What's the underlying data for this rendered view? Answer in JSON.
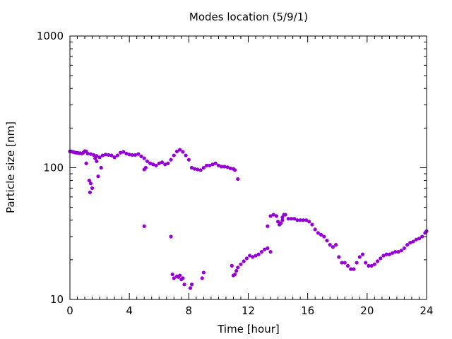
{
  "chart_data": {
    "type": "scatter",
    "title": "Modes location (5/9/1)",
    "xlabel": "Time [hour]",
    "ylabel": "Particle size [nm]",
    "xlim": [
      0,
      24
    ],
    "ylim": [
      10,
      1000
    ],
    "yscale": "log",
    "xticks": [
      0,
      4,
      8,
      12,
      16,
      20,
      24
    ],
    "xtick_labels": [
      "0",
      "4",
      "8",
      "12",
      "16",
      "20",
      "24"
    ],
    "yticks": [
      10,
      100,
      1000
    ],
    "ytick_labels": [
      "10",
      "100",
      "1000"
    ],
    "grid": false,
    "legend": "none",
    "marker_color": "#9400d3",
    "series": [
      {
        "x": [
          0.0,
          0.1,
          0.2,
          0.3,
          0.4,
          0.5,
          0.6,
          0.7,
          0.8,
          0.9,
          1.0,
          1.1,
          1.2,
          1.4,
          1.6,
          1.8,
          2.0,
          2.2,
          2.4,
          2.6,
          2.8,
          3.0,
          3.2,
          3.4,
          3.6,
          3.8,
          4.0,
          4.2,
          4.4,
          4.6,
          4.8,
          5.0,
          5.2,
          5.4,
          5.6,
          5.8,
          6.0,
          6.2,
          6.4,
          6.6,
          6.8,
          7.0,
          7.2,
          7.4,
          7.6,
          7.8,
          8.0,
          8.2,
          8.4,
          8.6,
          8.8,
          9.0,
          9.2,
          9.4,
          9.6,
          9.8,
          10.0,
          10.2,
          10.4,
          10.6,
          10.8,
          11.0,
          11.1
        ],
        "y": [
          133,
          133,
          132,
          131,
          130,
          130,
          129,
          129,
          128,
          130,
          134,
          133,
          128,
          127,
          125,
          123,
          120,
          124,
          126,
          125,
          124,
          120,
          124,
          130,
          132,
          128,
          126,
          125,
          125,
          127,
          122,
          118,
          112,
          108,
          106,
          104,
          108,
          110,
          106,
          108,
          115,
          124,
          133,
          137,
          132,
          124,
          115,
          100,
          98,
          97,
          96,
          100,
          104,
          104,
          106,
          108,
          104,
          102,
          102,
          101,
          99,
          98,
          96
        ]
      },
      {
        "x": [
          1.1,
          1.3,
          1.4,
          1.35,
          1.5,
          1.7,
          1.8,
          1.9,
          2.1,
          5.0,
          5.1,
          11.3
        ],
        "y": [
          108,
          80,
          76,
          65,
          70,
          118,
          112,
          86,
          100,
          97,
          100,
          82
        ]
      },
      {
        "x": [
          5.0,
          6.8
        ],
        "y": [
          36,
          30
        ]
      },
      {
        "x": [
          6.9,
          7.0,
          7.2,
          7.3,
          7.4,
          7.5,
          7.6,
          7.7,
          8.1,
          8.2,
          8.9,
          9.0,
          10.9,
          11.0,
          11.1,
          11.2,
          11.3,
          11.5,
          11.7,
          11.9,
          12.1,
          12.3,
          12.5,
          12.7,
          12.9,
          13.1,
          13.3,
          13.5
        ],
        "y": [
          15.5,
          14.5,
          15.0,
          14.8,
          15.2,
          14.2,
          14.5,
          13.0,
          12.2,
          13.0,
          14.5,
          16.0,
          18.0,
          15.2,
          15.5,
          16.5,
          17.5,
          18.5,
          19.5,
          20.5,
          21.5,
          21.0,
          21.5,
          22.0,
          23.0,
          24.0,
          24.5,
          23.0
        ]
      },
      {
        "x": [
          13.3,
          13.5,
          13.7,
          13.9,
          14.1,
          14.3,
          14.5,
          14.7,
          14.9,
          15.1,
          15.3,
          15.5,
          15.7,
          15.9,
          16.1,
          16.3,
          16.5,
          16.7,
          16.9,
          17.1,
          17.3,
          17.5,
          17.7,
          17.9,
          18.1,
          18.3,
          18.5,
          18.7,
          18.9,
          19.1,
          19.3,
          19.5,
          19.7,
          19.9,
          20.1,
          20.3,
          20.5,
          20.7,
          20.9,
          21.1,
          21.3,
          21.5,
          21.7,
          21.9,
          22.1,
          22.3,
          22.5,
          22.7,
          22.9,
          23.1,
          23.3,
          23.5,
          23.7,
          23.9
        ],
        "y": [
          36,
          43,
          44,
          43,
          37,
          40,
          44,
          41,
          41,
          41,
          40,
          40,
          40,
          40,
          39,
          37,
          34,
          32,
          31,
          30,
          28,
          26,
          25,
          26,
          21,
          19,
          19,
          18,
          17,
          17,
          19,
          21,
          22,
          19,
          18,
          18,
          18.5,
          19.5,
          20.5,
          21.5,
          22,
          22,
          22.5,
          23,
          23,
          23.5,
          24.5,
          26,
          27,
          27.5,
          28.5,
          29,
          30,
          32
        ]
      },
      {
        "x": [
          14.0,
          14.1,
          14.2,
          14.3,
          14.4
        ],
        "y": [
          39,
          37,
          38,
          42,
          44
        ]
      },
      {
        "x": [
          23.95,
          24.0
        ],
        "y": [
          32.5,
          33
        ]
      }
    ]
  }
}
